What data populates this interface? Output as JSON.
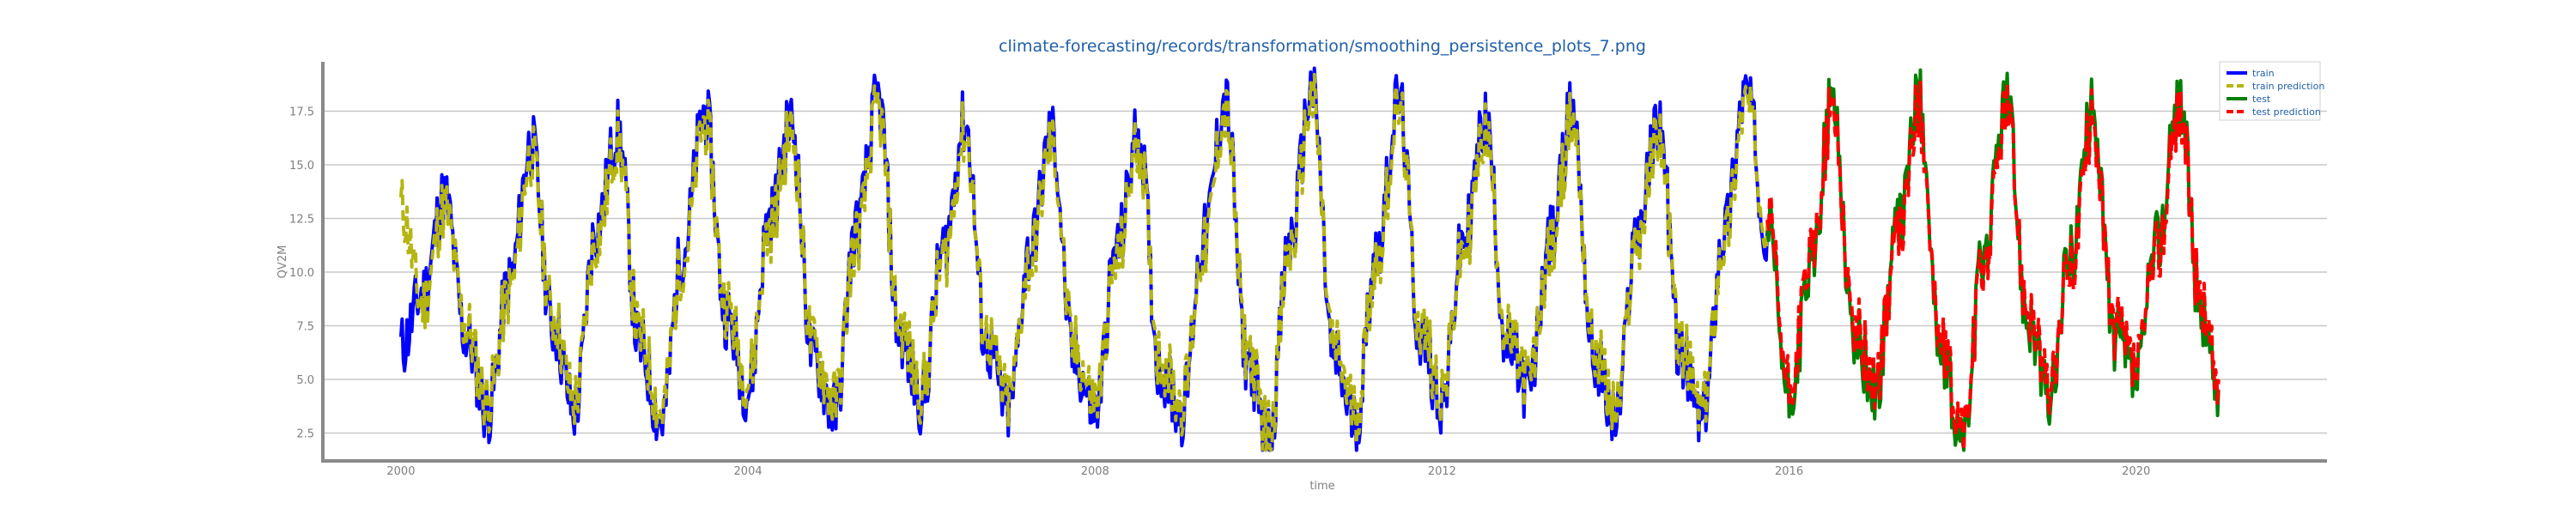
{
  "chart_data": {
    "type": "line",
    "title": "climate-forecasting/records/transformation/smoothing_persistence_plots_7.png",
    "xlabel": "time",
    "ylabel": "QV2M",
    "xlim": [
      1999.1,
      2022.2
    ],
    "ylim": [
      1.2,
      19.8
    ],
    "x_ticks": [
      2000,
      2004,
      2008,
      2012,
      2016,
      2020
    ],
    "x_tick_labels": [
      "2000",
      "2004",
      "2008",
      "2012",
      "2016",
      "2020"
    ],
    "y_ticks": [
      2.5,
      5.0,
      7.5,
      10.0,
      12.5,
      15.0,
      17.5
    ],
    "y_tick_labels": [
      "2.5",
      "5.0",
      "7.5",
      "10.0",
      "12.5",
      "15.0",
      "17.5"
    ],
    "grid": "horizontal",
    "legend_position": "top-right",
    "series": [
      {
        "name": "train",
        "color": "#0000ff",
        "style": "solid",
        "x": [
          2000.0,
          2000.25,
          2000.5,
          2000.75,
          2001.0,
          2001.25,
          2001.5,
          2001.75,
          2002.0,
          2002.25,
          2002.5,
          2002.75,
          2003.0,
          2003.25,
          2003.5,
          2003.75,
          2004.0,
          2004.25,
          2004.5,
          2004.75,
          2005.0,
          2005.25,
          2005.5,
          2005.75,
          2006.0,
          2006.25,
          2006.5,
          2006.75,
          2007.0,
          2007.25,
          2007.5,
          2007.75,
          2008.0,
          2008.25,
          2008.5,
          2008.75,
          2009.0,
          2009.25,
          2009.5,
          2009.75,
          2010.0,
          2010.25,
          2010.5,
          2010.75,
          2011.0,
          2011.25,
          2011.5,
          2011.75,
          2012.0,
          2012.25,
          2012.5,
          2012.75,
          2013.0,
          2013.25,
          2013.5,
          2013.75,
          2014.0,
          2014.25,
          2014.5,
          2014.75,
          2015.0,
          2015.25,
          2015.5,
          2015.75
        ],
        "y": [
          6.5,
          9.0,
          13.5,
          7.0,
          3.5,
          9.5,
          16.0,
          7.5,
          3.5,
          12.0,
          16.5,
          6.5,
          3.0,
          11.0,
          17.5,
          8.0,
          4.5,
          12.5,
          17.0,
          6.0,
          3.5,
          12.0,
          18.0,
          7.0,
          4.0,
          11.0,
          17.0,
          6.5,
          3.5,
          11.0,
          16.5,
          6.0,
          3.5,
          11.0,
          16.5,
          5.5,
          3.5,
          11.5,
          18.0,
          6.0,
          2.2,
          11.5,
          18.5,
          6.0,
          3.0,
          11.0,
          18.0,
          7.0,
          4.0,
          11.5,
          17.0,
          6.5,
          4.5,
          11.5,
          17.5,
          6.0,
          3.0,
          12.0,
          17.0,
          6.0,
          3.0,
          12.0,
          18.5,
          12.0
        ]
      },
      {
        "name": "train prediction",
        "color": "#b5b512",
        "style": "dashed",
        "x": [
          2000.0,
          2000.25,
          2000.5,
          2000.75,
          2001.0,
          2001.25,
          2001.5,
          2001.75,
          2002.0,
          2002.25,
          2002.5,
          2002.75,
          2003.0,
          2003.25,
          2003.5,
          2003.75,
          2004.0,
          2004.25,
          2004.5,
          2004.75,
          2005.0,
          2005.25,
          2005.5,
          2005.75,
          2006.0,
          2006.25,
          2006.5,
          2006.75,
          2007.0,
          2007.25,
          2007.5,
          2007.75,
          2008.0,
          2008.25,
          2008.5,
          2008.75,
          2009.0,
          2009.25,
          2009.5,
          2009.75,
          2010.0,
          2010.25,
          2010.5,
          2010.75,
          2011.0,
          2011.25,
          2011.5,
          2011.75,
          2012.0,
          2012.25,
          2012.5,
          2012.75,
          2013.0,
          2013.25,
          2013.5,
          2013.75,
          2014.0,
          2014.25,
          2014.5,
          2014.75,
          2015.0,
          2015.25,
          2015.5,
          2015.75
        ],
        "y": [
          13.0,
          8.5,
          13.0,
          7.5,
          4.0,
          9.0,
          15.5,
          8.0,
          4.0,
          11.5,
          16.0,
          7.0,
          3.5,
          10.5,
          17.0,
          8.5,
          5.0,
          12.0,
          16.5,
          6.5,
          4.0,
          11.5,
          17.5,
          7.5,
          4.5,
          10.5,
          16.5,
          7.0,
          4.0,
          10.5,
          16.0,
          6.5,
          4.0,
          10.5,
          16.0,
          6.0,
          4.0,
          11.0,
          17.5,
          6.5,
          2.6,
          11.0,
          18.0,
          6.5,
          3.5,
          10.5,
          17.5,
          7.5,
          4.5,
          11.0,
          16.5,
          7.0,
          5.0,
          11.0,
          17.0,
          6.5,
          3.5,
          11.5,
          16.5,
          6.5,
          3.5,
          11.5,
          18.0,
          12.5
        ]
      },
      {
        "name": "test",
        "color": "#008000",
        "style": "solid",
        "x": [
          2015.75,
          2016.0,
          2016.25,
          2016.5,
          2016.75,
          2017.0,
          2017.25,
          2017.5,
          2017.75,
          2018.0,
          2018.25,
          2018.5,
          2018.75,
          2019.0,
          2019.25,
          2019.5,
          2019.75,
          2020.0,
          2020.25,
          2020.5,
          2020.75,
          2020.95
        ],
        "y": [
          12.0,
          4.0,
          10.0,
          18.0,
          7.0,
          4.5,
          12.0,
          18.0,
          6.0,
          2.0,
          11.0,
          18.0,
          8.0,
          4.0,
          11.0,
          17.5,
          7.0,
          5.0,
          11.5,
          18.0,
          8.0,
          4.5
        ]
      },
      {
        "name": "test prediction",
        "color": "#ff0000",
        "style": "dashed",
        "x": [
          2015.75,
          2016.0,
          2016.25,
          2016.5,
          2016.75,
          2017.0,
          2017.25,
          2017.5,
          2017.75,
          2018.0,
          2018.25,
          2018.5,
          2018.75,
          2019.0,
          2019.25,
          2019.5,
          2019.75,
          2020.0,
          2020.25,
          2020.5,
          2020.75,
          2020.95
        ],
        "y": [
          12.5,
          4.5,
          10.5,
          17.5,
          7.5,
          5.0,
          11.5,
          17.5,
          6.5,
          2.5,
          10.5,
          17.5,
          8.5,
          4.5,
          10.5,
          17.0,
          7.5,
          5.5,
          11.0,
          17.5,
          8.5,
          5.0
        ]
      }
    ]
  }
}
